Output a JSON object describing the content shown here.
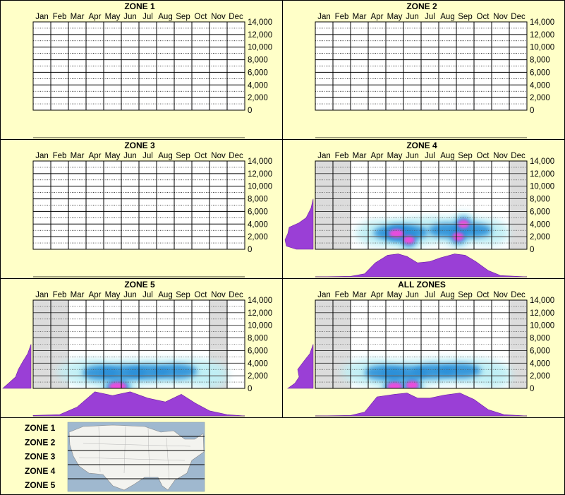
{
  "colors": {
    "background": "#ffffc8",
    "panel_border": "#000000",
    "plot_bg": "#ffffff",
    "inactive_band": "#dcdcdc",
    "profile": "#9a3fd6",
    "density_low": "#bfeff5",
    "density_mid": "#2b8fd8",
    "density_high": "#1a1ad6",
    "density_peak": "#ff44dd"
  },
  "months": [
    "Jan",
    "Feb",
    "Mar",
    "Apr",
    "May",
    "Jun",
    "Jul",
    "Aug",
    "Sep",
    "Oct",
    "Nov",
    "Dec"
  ],
  "elevation_ticks": [
    "14,000",
    "12,000",
    "10,000",
    "8,000",
    "6,000",
    "4,000",
    "2,000",
    "0"
  ],
  "legend": {
    "zones": [
      "ZONE 1",
      "ZONE 2",
      "ZONE 3",
      "ZONE 4",
      "ZONE 5"
    ],
    "map_icon": "usa-map-icon"
  },
  "chart_data": [
    {
      "type": "heatmap",
      "title": "ZONE 1",
      "categories": [
        "Jan",
        "Feb",
        "Mar",
        "Apr",
        "May",
        "Jun",
        "Jul",
        "Aug",
        "Sep",
        "Oct",
        "Nov",
        "Dec"
      ],
      "ylim": [
        0,
        14000
      ],
      "grid": true,
      "has_data": false
    },
    {
      "type": "heatmap",
      "title": "ZONE 2",
      "categories": [
        "Jan",
        "Feb",
        "Mar",
        "Apr",
        "May",
        "Jun",
        "Jul",
        "Aug",
        "Sep",
        "Oct",
        "Nov",
        "Dec"
      ],
      "ylim": [
        0,
        14000
      ],
      "grid": true,
      "has_data": false
    },
    {
      "type": "heatmap",
      "title": "ZONE 3",
      "categories": [
        "Jan",
        "Feb",
        "Mar",
        "Apr",
        "May",
        "Jun",
        "Jul",
        "Aug",
        "Sep",
        "Oct",
        "Nov",
        "Dec"
      ],
      "ylim": [
        0,
        14000
      ],
      "grid": true,
      "has_data": false
    },
    {
      "type": "heatmap",
      "title": "ZONE 4",
      "categories": [
        "Jan",
        "Feb",
        "Mar",
        "Apr",
        "May",
        "Jun",
        "Jul",
        "Aug",
        "Sep",
        "Oct",
        "Nov",
        "Dec"
      ],
      "ylim": [
        0,
        14000
      ],
      "grid": true,
      "has_data": true,
      "inactive_months": [
        1,
        2,
        12
      ],
      "density_blobs": [
        {
          "month": 3.9,
          "elev": 2600,
          "r": 0.7,
          "level": 1
        },
        {
          "month": 5.0,
          "elev": 2600,
          "r": 1.2,
          "level": 2
        },
        {
          "month": 5.1,
          "elev": 2500,
          "r": 0.6,
          "level": 3
        },
        {
          "month": 5.8,
          "elev": 2700,
          "r": 1.1,
          "level": 2
        },
        {
          "month": 5.8,
          "elev": 1500,
          "r": 0.45,
          "level": 3
        },
        {
          "month": 6.9,
          "elev": 3200,
          "r": 1.0,
          "level": 1
        },
        {
          "month": 8.0,
          "elev": 3000,
          "r": 1.1,
          "level": 2
        },
        {
          "month": 8.6,
          "elev": 2000,
          "r": 0.45,
          "level": 3
        },
        {
          "month": 8.9,
          "elev": 4000,
          "r": 0.45,
          "level": 3
        },
        {
          "month": 9.4,
          "elev": 3000,
          "r": 1.1,
          "level": 2
        },
        {
          "month": 10.4,
          "elev": 2600,
          "r": 0.7,
          "level": 1
        }
      ],
      "elevation_profile": [
        {
          "elev": 0,
          "v": 0.6
        },
        {
          "elev": 500,
          "v": 0.95
        },
        {
          "elev": 1500,
          "v": 1.0
        },
        {
          "elev": 2500,
          "v": 0.9
        },
        {
          "elev": 3500,
          "v": 0.85
        },
        {
          "elev": 4200,
          "v": 0.5
        },
        {
          "elev": 5000,
          "v": 0.25
        },
        {
          "elev": 6500,
          "v": 0.08
        },
        {
          "elev": 8000,
          "v": 0.0
        }
      ],
      "monthly_profile": [
        {
          "month": 0.5,
          "v": 0.0
        },
        {
          "month": 2.5,
          "v": 0.02
        },
        {
          "month": 3.3,
          "v": 0.12
        },
        {
          "month": 3.9,
          "v": 0.55
        },
        {
          "month": 4.6,
          "v": 0.85
        },
        {
          "month": 5.2,
          "v": 0.9
        },
        {
          "month": 5.7,
          "v": 0.8
        },
        {
          "month": 6.3,
          "v": 0.55
        },
        {
          "month": 7.0,
          "v": 0.6
        },
        {
          "month": 7.6,
          "v": 0.75
        },
        {
          "month": 8.4,
          "v": 0.9
        },
        {
          "month": 9.0,
          "v": 0.85
        },
        {
          "month": 9.6,
          "v": 0.6
        },
        {
          "month": 10.3,
          "v": 0.25
        },
        {
          "month": 11.0,
          "v": 0.05
        },
        {
          "month": 12.5,
          "v": 0.0
        }
      ]
    },
    {
      "type": "heatmap",
      "title": "ZONE 5",
      "categories": [
        "Jan",
        "Feb",
        "Mar",
        "Apr",
        "May",
        "Jun",
        "Jul",
        "Aug",
        "Sep",
        "Oct",
        "Nov",
        "Dec"
      ],
      "ylim": [
        0,
        14000
      ],
      "grid": true,
      "has_data": true,
      "inactive_months": [
        1,
        2,
        11
      ],
      "density_blobs": [
        {
          "month": 3.3,
          "elev": 2600,
          "r": 0.9,
          "level": 1
        },
        {
          "month": 4.3,
          "elev": 2500,
          "r": 1.0,
          "level": 2
        },
        {
          "month": 5.6,
          "elev": 2500,
          "r": 1.3,
          "level": 2
        },
        {
          "month": 5.3,
          "elev": 300,
          "r": 0.7,
          "level": 3
        },
        {
          "month": 7.0,
          "elev": 2600,
          "r": 1.2,
          "level": 2
        },
        {
          "month": 8.6,
          "elev": 2700,
          "r": 1.2,
          "level": 2
        },
        {
          "month": 9.8,
          "elev": 2500,
          "r": 0.9,
          "level": 1
        },
        {
          "month": 10.6,
          "elev": 2000,
          "r": 0.6,
          "level": 1
        }
      ],
      "elevation_profile": [
        {
          "elev": 0,
          "v": 1.0
        },
        {
          "elev": 800,
          "v": 0.8
        },
        {
          "elev": 1800,
          "v": 0.55
        },
        {
          "elev": 3000,
          "v": 0.45
        },
        {
          "elev": 4200,
          "v": 0.3
        },
        {
          "elev": 5500,
          "v": 0.12
        },
        {
          "elev": 7000,
          "v": 0.0
        }
      ],
      "monthly_profile": [
        {
          "month": 0.5,
          "v": 0.02
        },
        {
          "month": 2.0,
          "v": 0.05
        },
        {
          "month": 3.0,
          "v": 0.35
        },
        {
          "month": 4.0,
          "v": 0.95
        },
        {
          "month": 5.0,
          "v": 0.8
        },
        {
          "month": 6.0,
          "v": 0.95
        },
        {
          "month": 7.0,
          "v": 0.7
        },
        {
          "month": 8.0,
          "v": 0.55
        },
        {
          "month": 8.9,
          "v": 0.85
        },
        {
          "month": 9.7,
          "v": 0.5
        },
        {
          "month": 10.5,
          "v": 0.2
        },
        {
          "month": 11.5,
          "v": 0.05
        },
        {
          "month": 12.5,
          "v": 0.0
        }
      ]
    },
    {
      "type": "heatmap",
      "title": "ALL ZONES",
      "categories": [
        "Jan",
        "Feb",
        "Mar",
        "Apr",
        "May",
        "Jun",
        "Jul",
        "Aug",
        "Sep",
        "Oct",
        "Nov",
        "Dec"
      ],
      "ylim": [
        0,
        14000
      ],
      "grid": true,
      "has_data": true,
      "inactive_months": [
        1,
        2,
        12
      ],
      "density_blobs": [
        {
          "month": 3.4,
          "elev": 2600,
          "r": 0.9,
          "level": 1
        },
        {
          "month": 4.4,
          "elev": 2500,
          "r": 1.1,
          "level": 2
        },
        {
          "month": 5.6,
          "elev": 2400,
          "r": 1.3,
          "level": 2
        },
        {
          "month": 5.0,
          "elev": 300,
          "r": 0.6,
          "level": 3
        },
        {
          "month": 6.0,
          "elev": 500,
          "r": 0.5,
          "level": 3
        },
        {
          "month": 7.2,
          "elev": 2700,
          "r": 1.2,
          "level": 2
        },
        {
          "month": 8.7,
          "elev": 2800,
          "r": 1.2,
          "level": 2
        },
        {
          "month": 9.9,
          "elev": 2500,
          "r": 0.9,
          "level": 1
        },
        {
          "month": 10.7,
          "elev": 2000,
          "r": 0.6,
          "level": 1
        }
      ],
      "elevation_profile": [
        {
          "elev": 0,
          "v": 0.9
        },
        {
          "elev": 800,
          "v": 0.65
        },
        {
          "elev": 1800,
          "v": 0.5
        },
        {
          "elev": 3000,
          "v": 0.55
        },
        {
          "elev": 4200,
          "v": 0.35
        },
        {
          "elev": 5500,
          "v": 0.12
        },
        {
          "elev": 7000,
          "v": 0.0
        }
      ],
      "monthly_profile": [
        {
          "month": 0.5,
          "v": 0.0
        },
        {
          "month": 2.5,
          "v": 0.02
        },
        {
          "month": 3.3,
          "v": 0.15
        },
        {
          "month": 4.0,
          "v": 0.75
        },
        {
          "month": 5.0,
          "v": 0.85
        },
        {
          "month": 5.7,
          "v": 0.9
        },
        {
          "month": 6.3,
          "v": 0.7
        },
        {
          "month": 7.0,
          "v": 0.7
        },
        {
          "month": 7.8,
          "v": 0.82
        },
        {
          "month": 8.7,
          "v": 0.9
        },
        {
          "month": 9.5,
          "v": 0.65
        },
        {
          "month": 10.3,
          "v": 0.25
        },
        {
          "month": 11.2,
          "v": 0.05
        },
        {
          "month": 12.5,
          "v": 0.0
        }
      ]
    }
  ]
}
